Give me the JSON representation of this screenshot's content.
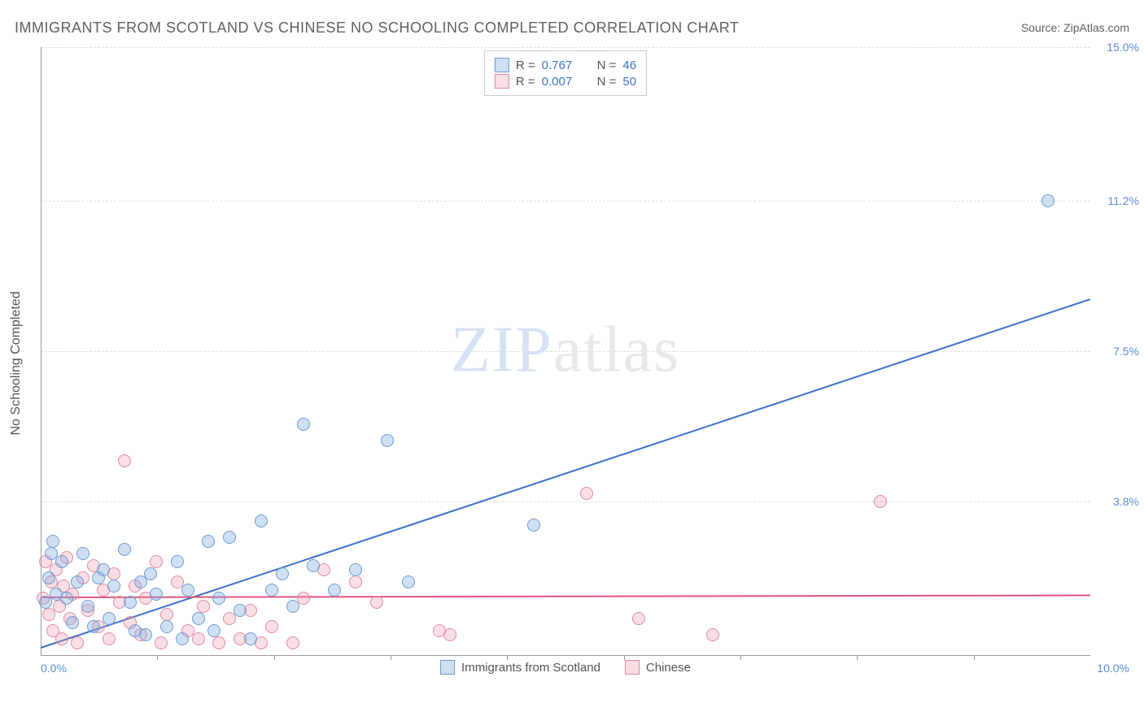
{
  "header": {
    "title": "IMMIGRANTS FROM SCOTLAND VS CHINESE NO SCHOOLING COMPLETED CORRELATION CHART",
    "source_label": "Source: ",
    "source_value": "ZipAtlas.com"
  },
  "watermark": {
    "part1": "ZIP",
    "part2": "atlas"
  },
  "chart": {
    "type": "scatter",
    "background_color": "#ffffff",
    "grid_color": "#dddddd",
    "axis_color": "#999999",
    "xlim": [
      0,
      10
    ],
    "ylim": [
      0,
      15
    ],
    "x_ticks_minor_count": 8,
    "x_tick_labels": {
      "min": "0.0%",
      "max": "10.0%"
    },
    "y_tick_labels": [
      {
        "value": 3.8,
        "label": "3.8%"
      },
      {
        "value": 7.5,
        "label": "7.5%"
      },
      {
        "value": 11.2,
        "label": "11.2%"
      },
      {
        "value": 15.0,
        "label": "15.0%"
      }
    ],
    "y_axis_title": "No Schooling Completed",
    "tick_label_color": "#5b8dd6",
    "axis_title_color": "#555555",
    "series": [
      {
        "name": "Immigrants from Scotland",
        "fill_color": "rgba(120,165,220,0.35)",
        "stroke_color": "#6a9cd4",
        "line_color": "#3a72c8",
        "marker_radius": 8,
        "trend": {
          "x1": 0,
          "y1": 0.2,
          "x2": 10,
          "y2": 8.8
        },
        "points": [
          [
            0.05,
            1.3
          ],
          [
            0.08,
            1.9
          ],
          [
            0.1,
            2.5
          ],
          [
            0.15,
            1.5
          ],
          [
            0.2,
            2.3
          ],
          [
            0.25,
            1.4
          ],
          [
            0.3,
            0.8
          ],
          [
            0.35,
            1.8
          ],
          [
            0.4,
            2.5
          ],
          [
            0.45,
            1.2
          ],
          [
            0.5,
            0.7
          ],
          [
            0.55,
            1.9
          ],
          [
            0.6,
            2.1
          ],
          [
            0.65,
            0.9
          ],
          [
            0.7,
            1.7
          ],
          [
            0.8,
            2.6
          ],
          [
            0.85,
            1.3
          ],
          [
            0.9,
            0.6
          ],
          [
            0.95,
            1.8
          ],
          [
            1.0,
            0.5
          ],
          [
            1.05,
            2.0
          ],
          [
            1.1,
            1.5
          ],
          [
            1.2,
            0.7
          ],
          [
            1.3,
            2.3
          ],
          [
            1.35,
            0.4
          ],
          [
            1.4,
            1.6
          ],
          [
            1.5,
            0.9
          ],
          [
            1.6,
            2.8
          ],
          [
            1.65,
            0.6
          ],
          [
            1.7,
            1.4
          ],
          [
            1.8,
            2.9
          ],
          [
            1.9,
            1.1
          ],
          [
            2.0,
            0.4
          ],
          [
            2.1,
            3.3
          ],
          [
            2.2,
            1.6
          ],
          [
            2.3,
            2.0
          ],
          [
            2.4,
            1.2
          ],
          [
            2.5,
            5.7
          ],
          [
            2.6,
            2.2
          ],
          [
            2.8,
            1.6
          ],
          [
            3.0,
            2.1
          ],
          [
            3.3,
            5.3
          ],
          [
            3.5,
            1.8
          ],
          [
            4.7,
            3.2
          ],
          [
            9.6,
            11.2
          ],
          [
            0.12,
            2.8
          ]
        ]
      },
      {
        "name": "Chinese",
        "fill_color": "rgba(235,150,170,0.30)",
        "stroke_color": "#e08aa0",
        "line_color": "#e05580",
        "marker_radius": 8,
        "trend": {
          "x1": 0,
          "y1": 1.45,
          "x2": 10,
          "y2": 1.5
        },
        "points": [
          [
            0.02,
            1.4
          ],
          [
            0.05,
            2.3
          ],
          [
            0.08,
            1.0
          ],
          [
            0.1,
            1.8
          ],
          [
            0.12,
            0.6
          ],
          [
            0.15,
            2.1
          ],
          [
            0.18,
            1.2
          ],
          [
            0.2,
            0.4
          ],
          [
            0.22,
            1.7
          ],
          [
            0.25,
            2.4
          ],
          [
            0.28,
            0.9
          ],
          [
            0.3,
            1.5
          ],
          [
            0.35,
            0.3
          ],
          [
            0.4,
            1.9
          ],
          [
            0.45,
            1.1
          ],
          [
            0.5,
            2.2
          ],
          [
            0.55,
            0.7
          ],
          [
            0.6,
            1.6
          ],
          [
            0.65,
            0.4
          ],
          [
            0.7,
            2.0
          ],
          [
            0.75,
            1.3
          ],
          [
            0.8,
            4.8
          ],
          [
            0.85,
            0.8
          ],
          [
            0.9,
            1.7
          ],
          [
            0.95,
            0.5
          ],
          [
            1.0,
            1.4
          ],
          [
            1.1,
            2.3
          ],
          [
            1.15,
            0.3
          ],
          [
            1.2,
            1.0
          ],
          [
            1.3,
            1.8
          ],
          [
            1.4,
            0.6
          ],
          [
            1.5,
            0.4
          ],
          [
            1.55,
            1.2
          ],
          [
            1.7,
            0.3
          ],
          [
            1.8,
            0.9
          ],
          [
            1.9,
            0.4
          ],
          [
            2.0,
            1.1
          ],
          [
            2.1,
            0.3
          ],
          [
            2.2,
            0.7
          ],
          [
            2.4,
            0.3
          ],
          [
            2.5,
            1.4
          ],
          [
            2.7,
            2.1
          ],
          [
            3.0,
            1.8
          ],
          [
            3.2,
            1.3
          ],
          [
            3.8,
            0.6
          ],
          [
            3.9,
            0.5
          ],
          [
            5.2,
            4.0
          ],
          [
            5.7,
            0.9
          ],
          [
            6.4,
            0.5
          ],
          [
            8.0,
            3.8
          ]
        ]
      }
    ],
    "legend_top": {
      "r_label": "R",
      "n_label": "N",
      "eq": "=",
      "rows": [
        {
          "series": 0,
          "r": "0.767",
          "n": "46"
        },
        {
          "series": 1,
          "r": "0.007",
          "n": "50"
        }
      ]
    }
  }
}
